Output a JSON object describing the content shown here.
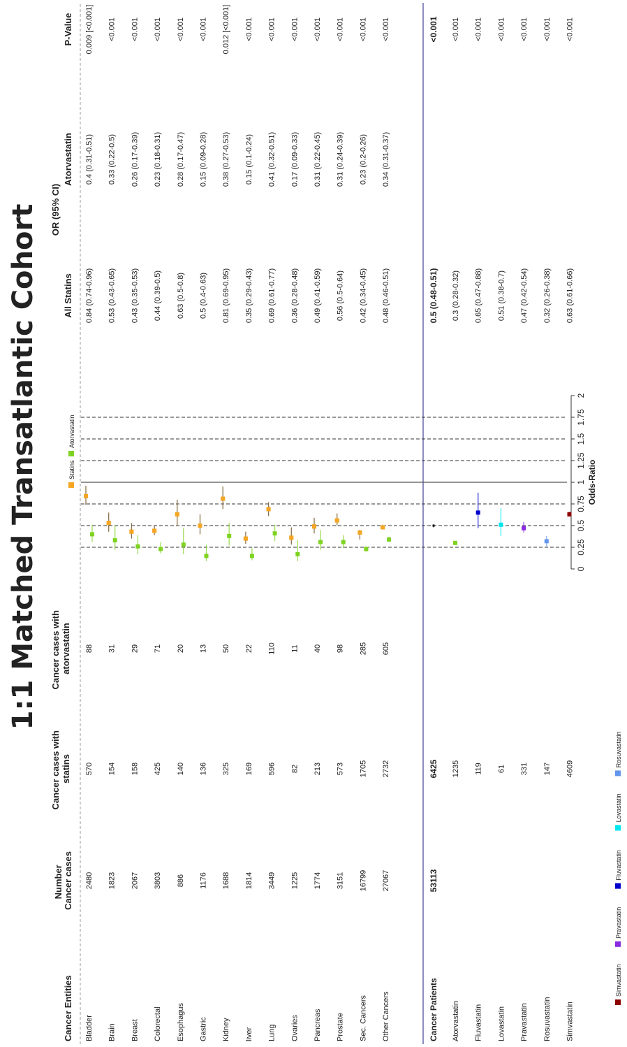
{
  "title": "1:1 Matched Transatlantic Cohort",
  "headers": {
    "entities": "Cancer Entities",
    "number": [
      "Number",
      "Cancer cases"
    ],
    "statins": [
      "Cancer cases with",
      "statins"
    ],
    "atorvastatin": [
      "Cancer cases with",
      "atorvastatin"
    ],
    "or_group": "OR (95% CI)",
    "all_statins": "All Statins",
    "atorvastatin_col": "Atorvastatin",
    "pvalue": "P-Value"
  },
  "rows": [
    {
      "name": "Bladder",
      "number": "2480",
      "statins": "570",
      "atorvastatin": "88",
      "all_statins_or": "0.84 (0.74-0.96)",
      "atorvastatin_or": "0.4 (0.31-0.51)",
      "p": "0.009 [<0.001]"
    },
    {
      "name": "Brain",
      "number": "1823",
      "statins": "154",
      "atorvastatin": "31",
      "all_statins_or": "0.53 (0.43-0.65)",
      "atorvastatin_or": "0.33 (0.22-0.5)",
      "p": "<0.001"
    },
    {
      "name": "Breast",
      "number": "2067",
      "statins": "158",
      "atorvastatin": "29",
      "all_statins_or": "0.43 (0.35-0.53)",
      "atorvastatin_or": "0.26 (0.17-0.39)",
      "p": "<0.001"
    },
    {
      "name": "Colorectal",
      "number": "3803",
      "statins": "425",
      "atorvastatin": "71",
      "all_statins_or": "0.44 (0.39-0.5)",
      "atorvastatin_or": "0.23 (0.18-0.31)",
      "p": "<0.001"
    },
    {
      "name": "Esophagus",
      "number": "886",
      "statins": "140",
      "atorvastatin": "20",
      "all_statins_or": "0.63 (0.5-0.8)",
      "atorvastatin_or": "0.28 (0.17-0.47)",
      "p": "<0.001"
    },
    {
      "name": "Gastric",
      "number": "1176",
      "statins": "136",
      "atorvastatin": "13",
      "all_statins_or": "0.5 (0.4-0.63)",
      "atorvastatin_or": "0.15 (0.09-0.28)",
      "p": "<0.001"
    },
    {
      "name": "Kidney",
      "number": "1688",
      "statins": "325",
      "atorvastatin": "50",
      "all_statins_or": "0.81 (0.69-0.95)",
      "atorvastatin_or": "0.38 (0.27-0.53)",
      "p": "0.012 [<0.001]"
    },
    {
      "name": "liver",
      "number": "1814",
      "statins": "169",
      "atorvastatin": "22",
      "all_statins_or": "0.35 (0.29-0.43)",
      "atorvastatin_or": "0.15 (0.1-0.24)",
      "p": "<0.001"
    },
    {
      "name": "Lung",
      "number": "3449",
      "statins": "596",
      "atorvastatin": "110",
      "all_statins_or": "0.69 (0.61-0.77)",
      "atorvastatin_or": "0.41 (0.32-0.51)",
      "p": "<0.001"
    },
    {
      "name": "Ovaries",
      "number": "1225",
      "statins": "82",
      "atorvastatin": "11",
      "all_statins_or": "0.36 (0.28-0.48)",
      "atorvastatin_or": "0.17 (0.09-0.33)",
      "p": "<0.001"
    },
    {
      "name": "Pancreas",
      "number": "1774",
      "statins": "213",
      "atorvastatin": "40",
      "all_statins_or": "0.49 (0.41-0.59)",
      "atorvastatin_or": "0.31 (0.22-0.45)",
      "p": "<0.001"
    },
    {
      "name": "Prostate",
      "number": "3151",
      "statins": "573",
      "atorvastatin": "98",
      "all_statins_or": "0.56 (0.5-0.64)",
      "atorvastatin_or": "0.31 (0.24-0.39)",
      "p": "<0.001"
    },
    {
      "name": "Sec. Cancers",
      "number": "16799",
      "statins": "1705",
      "atorvastatin": "285",
      "all_statins_or": "0.42 (0.34-0.45)",
      "atorvastatin_or": "0.23 (0.2-0.26)",
      "p": "<0.001"
    },
    {
      "name": "Other Cancers",
      "number": "27067",
      "statins": "2732",
      "atorvastatin": "605",
      "all_statins_or": "0.48 (0.46-0.51)",
      "atorvastatin_or": "0.34 (0.31-0.37)",
      "p": "<0.001"
    }
  ],
  "summary": {
    "name": "Cancer Patients",
    "number": "53113",
    "statins": "6425",
    "all_statins_or": "0.5 (0.48-0.51)",
    "p": "<0.001"
  },
  "drug_rows": [
    {
      "name": "Atorvastatin",
      "statins": "1235",
      "all_statins_or": "0.3 (0.28-0.32)",
      "p": "<0.001"
    },
    {
      "name": "Fluvastatin",
      "statins": "119",
      "all_statins_or": "0.65 (0.47-0.88)",
      "p": "<0.001"
    },
    {
      "name": "Lovastatin",
      "statins": "61",
      "all_statins_or": "0.51 (0.38-0.7)",
      "p": "<0.001"
    },
    {
      "name": "Pravastatin",
      "statins": "331",
      "all_statins_or": "0.47 (0.42-0.54)",
      "p": "<0.001"
    },
    {
      "name": "Rosuvastatin",
      "statins": "147",
      "all_statins_or": "0.32 (0.26-0.38)",
      "p": "<0.001"
    },
    {
      "name": "Simvastatin",
      "statins": "4609",
      "all_statins_or": "0.63 (0.61-0.66)",
      "p": "<0.001"
    }
  ],
  "legend_top": [
    {
      "label": "Statins",
      "color": "#f5a623"
    },
    {
      "label": "Atorvastatin",
      "color": "#7ed321"
    }
  ],
  "legend_bottom": [
    {
      "label": "Simvastatin",
      "color": "#8b0000"
    },
    {
      "label": "Pravastatin",
      "color": "#8a2be2"
    },
    {
      "label": "Fluvastatin",
      "color": "#0000cc"
    },
    {
      "label": "Lovastatin",
      "color": "#00e5ee"
    },
    {
      "label": "Rosuvastatin",
      "color": "#6495ed"
    }
  ],
  "chart_data": {
    "type": "scatter",
    "orientation": "rotated-90-ccw",
    "xlabel": "Odds-Ratio",
    "xlim": [
      0,
      2
    ],
    "ticks": [
      "0",
      "0.25",
      "0.5",
      "0.75",
      "1",
      "1.25",
      "1.5",
      "1.75",
      "2"
    ],
    "reference_lines": [
      0.25,
      0.5,
      0.75,
      1,
      1.25,
      1.5,
      1.75
    ],
    "entity_series": [
      {
        "name": "Statins",
        "color": "#f5a623",
        "values": [
          [
            0.84,
            0.74,
            0.96
          ],
          [
            0.53,
            0.43,
            0.65
          ],
          [
            0.43,
            0.35,
            0.53
          ],
          [
            0.44,
            0.39,
            0.5
          ],
          [
            0.63,
            0.5,
            0.8
          ],
          [
            0.5,
            0.4,
            0.63
          ],
          [
            0.81,
            0.69,
            0.95
          ],
          [
            0.35,
            0.29,
            0.43
          ],
          [
            0.69,
            0.61,
            0.77
          ],
          [
            0.36,
            0.28,
            0.48
          ],
          [
            0.49,
            0.41,
            0.59
          ],
          [
            0.56,
            0.5,
            0.64
          ],
          [
            0.42,
            0.34,
            0.45
          ],
          [
            0.48,
            0.46,
            0.51
          ]
        ]
      },
      {
        "name": "Atorvastatin",
        "color": "#7ed321",
        "values": [
          [
            0.4,
            0.31,
            0.51
          ],
          [
            0.33,
            0.22,
            0.5
          ],
          [
            0.26,
            0.17,
            0.39
          ],
          [
            0.23,
            0.18,
            0.31
          ],
          [
            0.28,
            0.17,
            0.47
          ],
          [
            0.15,
            0.09,
            0.28
          ],
          [
            0.38,
            0.27,
            0.53
          ],
          [
            0.15,
            0.1,
            0.24
          ],
          [
            0.41,
            0.32,
            0.51
          ],
          [
            0.17,
            0.09,
            0.33
          ],
          [
            0.31,
            0.22,
            0.45
          ],
          [
            0.31,
            0.24,
            0.39
          ],
          [
            0.23,
            0.2,
            0.26
          ],
          [
            0.34,
            0.31,
            0.37
          ]
        ]
      }
    ],
    "summary_point": {
      "value": 0.5,
      "lo": 0.48,
      "hi": 0.51,
      "color": "#000000"
    },
    "drug_points": [
      {
        "name": "Atorvastatin",
        "value": 0.3,
        "lo": 0.28,
        "hi": 0.32,
        "color": "#7ed321"
      },
      {
        "name": "Fluvastatin",
        "value": 0.65,
        "lo": 0.47,
        "hi": 0.88,
        "color": "#0000cc"
      },
      {
        "name": "Lovastatin",
        "value": 0.51,
        "lo": 0.38,
        "hi": 0.7,
        "color": "#00e5ee"
      },
      {
        "name": "Pravastatin",
        "value": 0.47,
        "lo": 0.42,
        "hi": 0.54,
        "color": "#8a2be2"
      },
      {
        "name": "Rosuvastatin",
        "value": 0.32,
        "lo": 0.26,
        "hi": 0.38,
        "color": "#6495ed"
      },
      {
        "name": "Simvastatin",
        "value": 0.63,
        "lo": 0.61,
        "hi": 0.66,
        "color": "#8b0000"
      }
    ]
  }
}
